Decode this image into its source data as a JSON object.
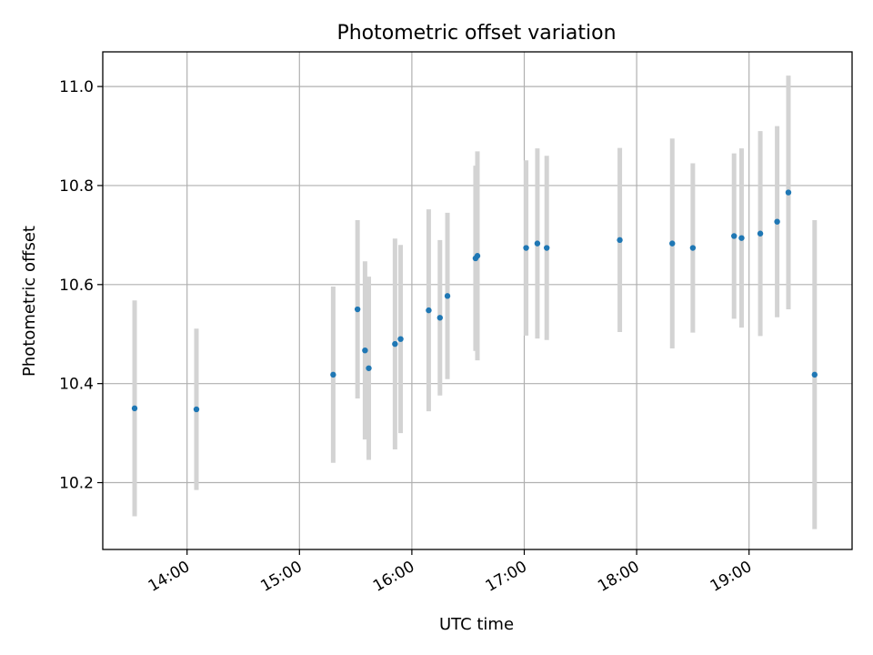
{
  "chart_data": {
    "type": "scatter",
    "title": "Photometric offset variation",
    "xlabel": "UTC time",
    "ylabel": "Photometric offset",
    "xlim": [
      "13:15",
      "19:55"
    ],
    "ylim": [
      10.065,
      11.07
    ],
    "xticks": [
      "14:00",
      "15:00",
      "16:00",
      "17:00",
      "18:00",
      "19:00"
    ],
    "yticks": [
      10.2,
      10.4,
      10.6,
      10.8,
      11.0
    ],
    "ytick_labels": [
      "10.2",
      "10.4",
      "10.6",
      "10.8",
      "11.0"
    ],
    "grid": true,
    "colors": {
      "marker": "#1f77b4",
      "errorbar": "#d3d3d3",
      "grid": "#b0b0b0"
    },
    "points": [
      {
        "x": "13:32",
        "y": 10.35,
        "err": 0.218
      },
      {
        "x": "14:05",
        "y": 10.348,
        "err": 0.163
      },
      {
        "x": "15:18",
        "y": 10.418,
        "err": 0.178
      },
      {
        "x": "15:31",
        "y": 10.55,
        "err": 0.18
      },
      {
        "x": "15:35",
        "y": 10.467,
        "err": 0.18
      },
      {
        "x": "15:37",
        "y": 10.431,
        "err": 0.185
      },
      {
        "x": "15:51",
        "y": 10.48,
        "err": 0.213
      },
      {
        "x": "15:54",
        "y": 10.49,
        "err": 0.19
      },
      {
        "x": "16:09",
        "y": 10.548,
        "err": 0.204
      },
      {
        "x": "16:15",
        "y": 10.533,
        "err": 0.157
      },
      {
        "x": "16:19",
        "y": 10.577,
        "err": 0.168
      },
      {
        "x": "16:34",
        "y": 10.653,
        "err": 0.187
      },
      {
        "x": "16:35",
        "y": 10.658,
        "err": 0.211
      },
      {
        "x": "17:01",
        "y": 10.674,
        "err": 0.177
      },
      {
        "x": "17:07",
        "y": 10.683,
        "err": 0.192
      },
      {
        "x": "17:12",
        "y": 10.674,
        "err": 0.186
      },
      {
        "x": "17:51",
        "y": 10.69,
        "err": 0.186
      },
      {
        "x": "18:19",
        "y": 10.683,
        "err": 0.212
      },
      {
        "x": "18:30",
        "y": 10.674,
        "err": 0.171
      },
      {
        "x": "18:52",
        "y": 10.698,
        "err": 0.167
      },
      {
        "x": "18:56",
        "y": 10.694,
        "err": 0.181
      },
      {
        "x": "19:06",
        "y": 10.703,
        "err": 0.207
      },
      {
        "x": "19:15",
        "y": 10.727,
        "err": 0.193
      },
      {
        "x": "19:21",
        "y": 10.786,
        "err": 0.236
      },
      {
        "x": "19:35",
        "y": 10.418,
        "err": 0.312
      }
    ]
  }
}
